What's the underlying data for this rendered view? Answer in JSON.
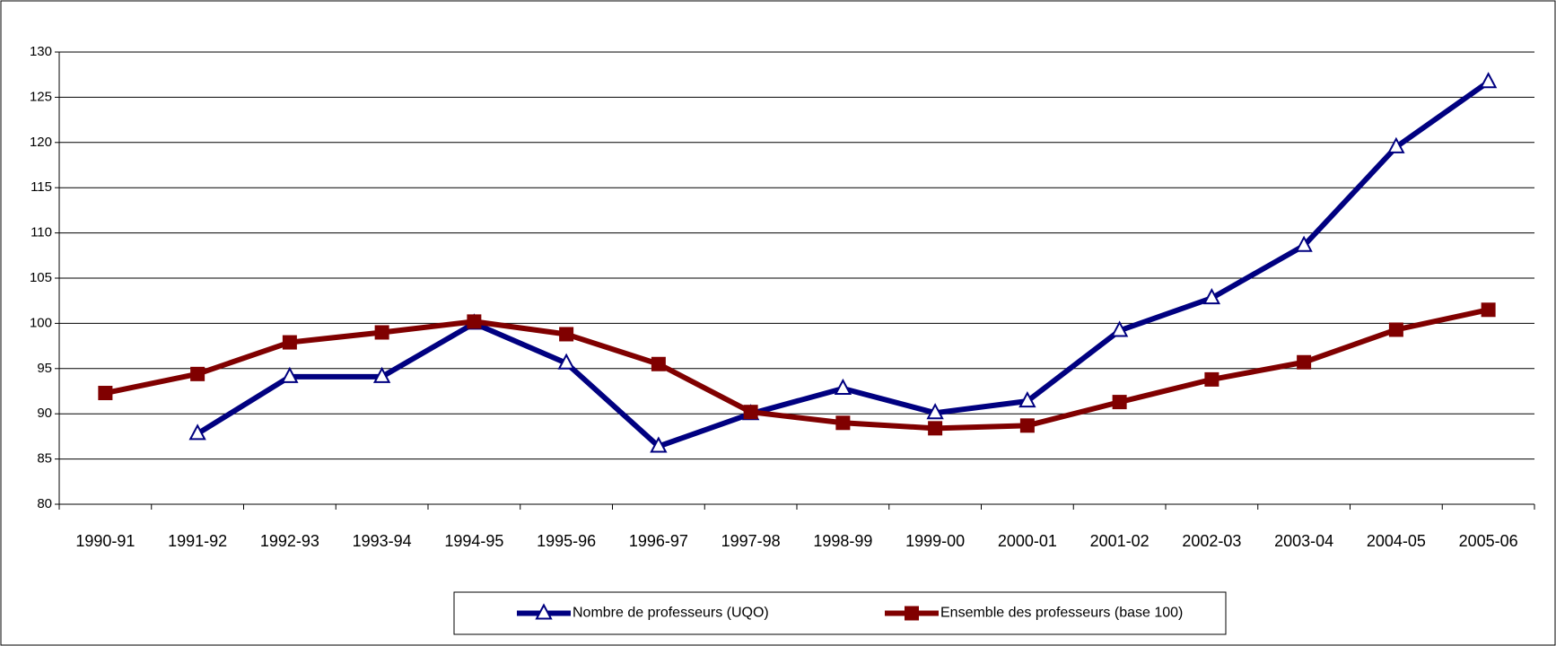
{
  "chart_data": {
    "type": "line",
    "categories": [
      "1990-91",
      "1991-92",
      "1992-93",
      "1993-94",
      "1994-95",
      "1995-96",
      "1996-97",
      "1997-98",
      "1998-99",
      "1999-00",
      "2000-01",
      "2001-02",
      "2002-03",
      "2003-04",
      "2004-05",
      "2005-06"
    ],
    "series": [
      {
        "name": "Nombre de professeurs (UQO)",
        "color": "#000080",
        "marker": "triangle",
        "values": [
          null,
          87.8,
          94.1,
          94.1,
          100,
          95.6,
          86.4,
          90,
          92.8,
          90.1,
          91.4,
          99.2,
          102.8,
          108.6,
          119.5,
          126.7
        ]
      },
      {
        "name": "Ensemble des professeurs (base 100)",
        "color": "#800000",
        "marker": "square",
        "values": [
          92.3,
          94.4,
          97.9,
          99,
          100.2,
          98.8,
          95.5,
          90.2,
          89,
          88.4,
          88.7,
          91.3,
          93.8,
          95.7,
          99.3,
          101.5
        ]
      }
    ],
    "ylim": [
      80,
      130
    ],
    "yticks": [
      80,
      85,
      90,
      95,
      100,
      105,
      110,
      115,
      120,
      125,
      130
    ],
    "grid": true,
    "legend": "bottom"
  }
}
